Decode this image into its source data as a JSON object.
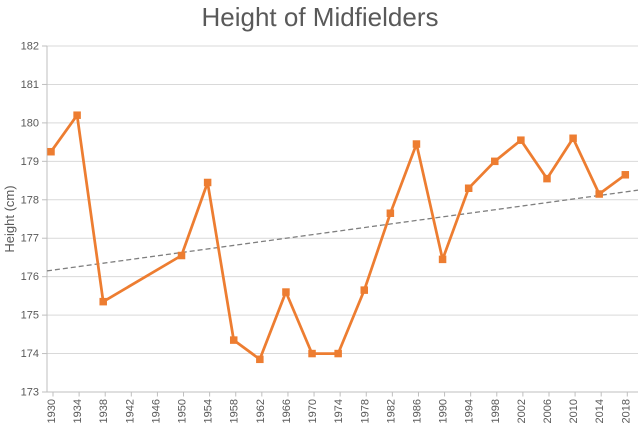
{
  "chart_data": {
    "type": "line",
    "title": "Height of Midfielders",
    "xlabel": "",
    "ylabel": "Height (cm)",
    "categories": [
      "1930",
      "1934",
      "1938",
      "1942",
      "1946",
      "1950",
      "1954",
      "1958",
      "1962",
      "1966",
      "1970",
      "1974",
      "1978",
      "1982",
      "1986",
      "1990",
      "1994",
      "1998",
      "2002",
      "2006",
      "2010",
      "2014",
      "2018"
    ],
    "series": [
      {
        "name": "Height of Midfielders",
        "marker": "square",
        "values": [
          179.25,
          180.2,
          175.35,
          null,
          null,
          176.55,
          178.45,
          174.35,
          173.85,
          175.6,
          174.0,
          174.0,
          175.65,
          177.65,
          179.45,
          176.45,
          178.3,
          179.0,
          179.55,
          178.55,
          179.6,
          178.15,
          178.65
        ]
      }
    ],
    "trendline": {
      "type": "linear",
      "dashed": true,
      "start_value": 176.15,
      "end_value": 178.25
    },
    "ylim": [
      173,
      182
    ],
    "y_tick_step": 1,
    "grid": "horizontal",
    "legend": "none",
    "colors": {
      "series": "#ED7D31",
      "trendline": "#7F7F7F",
      "gridline": "#D9D9D9",
      "axis_line": "#BFBFBF",
      "tick_text": "#595959",
      "title_text": "#595959",
      "axis_title_text": "#595959",
      "background": "#FFFFFF"
    }
  }
}
